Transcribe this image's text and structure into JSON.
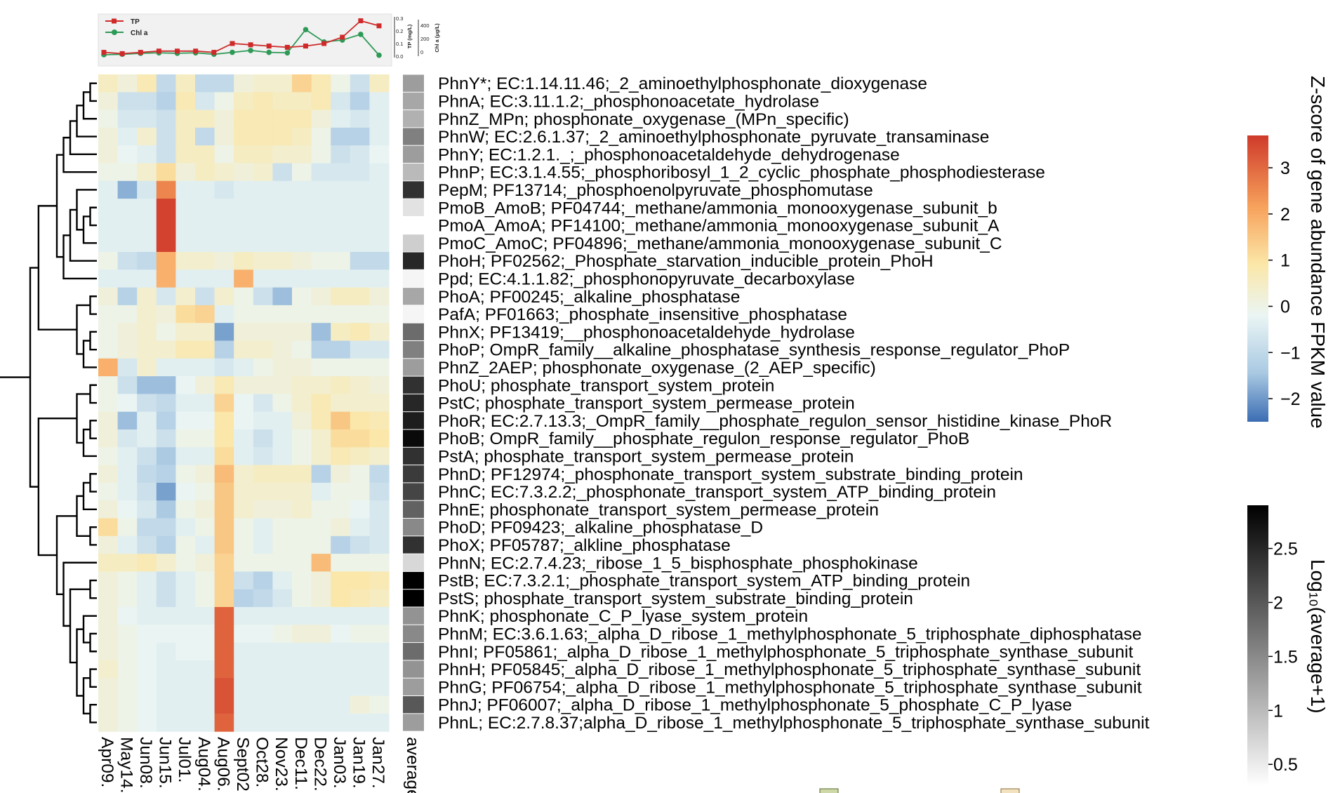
{
  "chart_data": {
    "type": "heatmap",
    "columns": [
      "Apr09.",
      "May14.",
      "Jun08.",
      "Jun15.",
      "Jul01.",
      "Aug04.",
      "Aug06.",
      "Sept02",
      "Oct28.",
      "Nov23.",
      "Dec11.",
      "Dec22.",
      "Jan03.",
      "Jan19.",
      "Jan27."
    ],
    "average_label": "average",
    "rows": [
      {
        "label": "PhnY*; EC:1.14.11.46;_2_aminoethylphosphonate_dioxygenase",
        "z": [
          0.8,
          0.4,
          1.0,
          -0.8,
          0.8,
          -0.8,
          -0.8,
          0.4,
          0.6,
          0.6,
          1.6,
          1.0,
          0.2,
          -0.6,
          0.8
        ],
        "avg": 1.3
      },
      {
        "label": "PhnA; EC:3.11.1.2;_phosphonoacetate_hydrolase",
        "z": [
          0.4,
          -0.6,
          -0.6,
          -1.0,
          1.0,
          -0.4,
          0.2,
          0.8,
          1.0,
          0.8,
          0.8,
          1.0,
          -0.4,
          -1.0,
          -0.2
        ],
        "avg": 1.2
      },
      {
        "label": "PhnZ_MPn; phosphonate_oxygenase_(MPn_specific)",
        "z": [
          0.2,
          -0.4,
          -0.4,
          -0.6,
          0.8,
          0.8,
          0.4,
          1.0,
          1.0,
          1.0,
          1.0,
          0.4,
          -0.2,
          -0.4,
          -0.2
        ],
        "avg": 1.1
      },
      {
        "label": "PhnW; EC:2.6.1.37;_2_aminoethylphosphonate_pyruvate_transaminase",
        "z": [
          0.4,
          -0.2,
          0.6,
          -0.6,
          0.8,
          -0.8,
          0.4,
          1.0,
          1.0,
          1.0,
          0.8,
          0.2,
          -1.0,
          -1.0,
          -0.2
        ],
        "avg": 1.6
      },
      {
        "label": "PhnY; EC:1.2.1._;_phosphonoacetaldehyde_dehydrogenase",
        "z": [
          0.4,
          0.0,
          -0.2,
          -0.6,
          0.8,
          0.8,
          0.2,
          0.8,
          0.8,
          0.6,
          0.6,
          0.2,
          -0.6,
          -0.4,
          0.0
        ],
        "avg": 1.3
      },
      {
        "label": "PhnP; EC:3.1.4.55;_phosphoribosyl_1_2_cyclic_phosphate_phosphodiesterase",
        "z": [
          0.2,
          0.2,
          0.6,
          1.4,
          0.4,
          0.8,
          0.6,
          0.4,
          0.6,
          -0.6,
          0.2,
          -0.4,
          -0.4,
          -0.4,
          -0.2
        ],
        "avg": 1.0
      },
      {
        "label": "PepM; PF13714;_phosphoenolpyruvate_phosphomutase",
        "z": [
          -0.2,
          -1.6,
          -0.4,
          2.8,
          -0.2,
          -0.2,
          -0.4,
          -0.2,
          -0.2,
          -0.2,
          -0.2,
          -0.2,
          -0.2,
          -0.2,
          -0.2
        ],
        "avg": 2.4
      },
      {
        "label": "PmoB_AmoB; PF04744;_methane/ammonia_monooxygenase_subunit_b",
        "z": [
          -0.2,
          -0.2,
          -0.2,
          3.6,
          -0.2,
          -0.2,
          -0.2,
          -0.2,
          -0.2,
          -0.2,
          -0.2,
          -0.2,
          -0.2,
          -0.2,
          -0.2
        ],
        "avg": 0.6
      },
      {
        "label": "PmoA_AmoA; PF14100;_methane/ammonia_monooxygenase_subunit_A",
        "z": [
          -0.2,
          -0.2,
          -0.2,
          3.6,
          -0.2,
          -0.2,
          -0.2,
          -0.2,
          -0.2,
          -0.2,
          -0.2,
          -0.2,
          -0.2,
          -0.2,
          -0.2
        ],
        "avg": 0.3
      },
      {
        "label": "PmoC_AmoC; PF04896;_methane/ammonia_monooxygenase_subunit_C",
        "z": [
          -0.2,
          -0.2,
          -0.2,
          3.6,
          -0.2,
          -0.2,
          -0.2,
          -0.2,
          -0.2,
          -0.2,
          -0.2,
          -0.2,
          -0.2,
          -0.2,
          -0.2
        ],
        "avg": 0.8
      },
      {
        "label": "PhoH; PF02562;_Phosphate_starvation_inducible_protein_PhoH",
        "z": [
          0.2,
          -0.6,
          -0.8,
          2.2,
          0.6,
          0.6,
          0.4,
          0.8,
          0.6,
          0.6,
          0.4,
          0.2,
          0.2,
          -0.8,
          -0.8
        ],
        "avg": 2.5
      },
      {
        "label": "Ppd; EC:4.1.1.82;_phosphonopyruvate_decarboxylase",
        "z": [
          -0.2,
          -0.2,
          -0.2,
          2.2,
          -0.2,
          -0.2,
          -0.2,
          2.2,
          -0.2,
          -0.2,
          -0.2,
          -0.2,
          -0.2,
          -0.2,
          -0.2
        ],
        "avg": 0.4
      },
      {
        "label": "PhoA; PF00245;_alkaline_phosphatase",
        "z": [
          0.4,
          -1.0,
          0.6,
          -0.4,
          0.6,
          -0.6,
          0.6,
          0.2,
          -0.6,
          -1.4,
          0.2,
          0.4,
          0.8,
          0.8,
          0.4
        ],
        "avg": 1.2
      },
      {
        "label": "PafA; PF01663;_phosphate_insensitive_phosphatase",
        "z": [
          0.2,
          0.2,
          0.6,
          0.4,
          1.4,
          1.6,
          -0.2,
          0.2,
          0.2,
          0.2,
          0.2,
          0.2,
          0.2,
          0.2,
          0.2
        ],
        "avg": 0.4
      },
      {
        "label": "PhnX; PF13419;__phosphonoacetaldehyde_hydrolase",
        "z": [
          0.2,
          0.4,
          0.6,
          0.2,
          0.6,
          0.6,
          -1.8,
          0.4,
          0.4,
          0.4,
          0.4,
          -1.4,
          0.8,
          1.0,
          0.6
        ],
        "avg": 1.8
      },
      {
        "label": "PhoP; OmpR_family__alkaline_phosphatase_synthesis_response_regulator_PhoP",
        "z": [
          0.2,
          0.4,
          0.6,
          0.6,
          1.0,
          1.0,
          -1.0,
          0.6,
          0.6,
          0.4,
          0.2,
          -1.0,
          -1.0,
          -0.4,
          -0.4
        ],
        "avg": 1.6
      },
      {
        "label": "PhnZ_2AEP; phosphonate_oxygenase_(2_AEP_specific)",
        "z": [
          2.2,
          -0.4,
          0.6,
          -0.2,
          -0.2,
          -0.2,
          -0.4,
          -0.2,
          0.2,
          0.4,
          0.4,
          0.2,
          0.2,
          0.2,
          0.2
        ],
        "avg": 1.3
      },
      {
        "label": "PhoU; phosphate_transport_system_protein",
        "z": [
          0.2,
          -0.6,
          -1.4,
          -1.4,
          0.0,
          0.4,
          1.0,
          0.4,
          0.4,
          0.4,
          0.6,
          0.6,
          0.8,
          0.6,
          0.4
        ],
        "avg": 2.4
      },
      {
        "label": "PstC; phosphate_transport_system_permease_protein",
        "z": [
          0.2,
          0.0,
          -0.6,
          -0.8,
          -0.2,
          -0.2,
          1.6,
          0.0,
          -0.4,
          0.2,
          0.6,
          1.0,
          0.6,
          0.6,
          0.6
        ],
        "avg": 2.5
      },
      {
        "label": "PhoR; EC:2.7.13.3;_OmpR_family__phosphate_regulon_sensor_histidine_kinase_PhoR",
        "z": [
          0.4,
          -1.4,
          -0.2,
          -1.0,
          0.0,
          0.0,
          1.2,
          0.0,
          -0.2,
          -0.2,
          0.4,
          1.0,
          1.8,
          1.2,
          1.0
        ],
        "avg": 2.6
      },
      {
        "label": "PhoB; OmpR_family__phosphate_regulon_response_regulator_PhoB",
        "z": [
          0.4,
          -0.4,
          -0.2,
          -0.6,
          0.2,
          0.2,
          1.2,
          -0.2,
          -0.6,
          -0.2,
          0.2,
          0.6,
          1.4,
          1.4,
          1.2
        ],
        "avg": 2.8
      },
      {
        "label": "PstA; phosphate_transport_system_permease_protein",
        "z": [
          0.2,
          -0.2,
          -0.6,
          -1.2,
          -0.2,
          -0.2,
          1.4,
          -0.2,
          -0.4,
          -0.2,
          0.2,
          0.6,
          1.0,
          0.8,
          0.6
        ],
        "avg": 2.4
      },
      {
        "label": "PhnD; PF12974;_phosphonate_transport_system_substrate_binding_protein",
        "z": [
          0.4,
          -0.2,
          -0.8,
          -1.0,
          0.2,
          0.4,
          2.0,
          0.6,
          0.8,
          0.8,
          0.8,
          -1.0,
          0.4,
          0.2,
          -0.8
        ],
        "avg": 2.3
      },
      {
        "label": "PhnC; EC:7.3.2.2;_phosphonate_transport_system_ATP_binding_protein",
        "z": [
          0.2,
          -0.2,
          -0.6,
          -1.8,
          0.0,
          0.2,
          1.8,
          0.6,
          0.6,
          0.6,
          0.6,
          -0.2,
          0.2,
          0.2,
          -0.6
        ],
        "avg": 2.2
      },
      {
        "label": "PhnE; phosphonate_transport_system_permease_protein",
        "z": [
          0.4,
          0.0,
          -0.4,
          -1.2,
          0.2,
          0.4,
          1.8,
          0.6,
          0.4,
          0.4,
          0.6,
          0.2,
          0.2,
          0.0,
          -0.4
        ],
        "avg": 1.9
      },
      {
        "label": "PhoD; PF09423;_alkaline_phosphatase_D",
        "z": [
          1.4,
          0.2,
          -0.8,
          -0.8,
          -0.2,
          0.2,
          1.8,
          0.2,
          -0.2,
          0.2,
          0.2,
          0.2,
          0.4,
          -0.2,
          -0.4
        ],
        "avg": 1.5
      },
      {
        "label": "PhoX; PF05787;_alkline_phosphatase",
        "z": [
          0.4,
          -0.2,
          -0.6,
          -1.0,
          0.2,
          -0.2,
          1.8,
          0.2,
          -0.2,
          0.2,
          0.2,
          0.2,
          -1.0,
          -0.6,
          -0.4
        ],
        "avg": 2.4
      },
      {
        "label": "PhnN; EC:2.7.4.23;_ribose_1_5_bisphosphate_phosphokinase",
        "z": [
          0.8,
          0.8,
          1.0,
          0.6,
          0.2,
          0.4,
          1.6,
          0.2,
          0.2,
          0.2,
          0.2,
          2.0,
          0.2,
          0.2,
          0.2
        ],
        "avg": 0.7
      },
      {
        "label": "PstB; EC:7.3.2.1;_phosphate_transport_system_ATP_binding_protein",
        "z": [
          0.4,
          0.2,
          -0.2,
          -0.6,
          -0.2,
          0.2,
          1.6,
          -0.6,
          -1.0,
          -0.2,
          0.2,
          0.4,
          1.2,
          1.2,
          1.0
        ],
        "avg": 2.9
      },
      {
        "label": "PstS; phosphate_transport_system_substrate_binding_protein",
        "z": [
          0.4,
          0.2,
          -0.2,
          -0.6,
          -0.2,
          0.2,
          1.6,
          -1.0,
          -0.8,
          -0.4,
          0.2,
          0.4,
          1.2,
          1.0,
          0.8
        ],
        "avg": 3.0
      },
      {
        "label": "PhnK; phosphonate_C_P_lyase_system_protein",
        "z": [
          0.4,
          0.0,
          -0.2,
          -0.2,
          -0.2,
          -0.2,
          3.2,
          -0.2,
          -0.2,
          -0.2,
          -0.2,
          -0.2,
          -0.2,
          -0.2,
          -0.2
        ],
        "avg": 1.4
      },
      {
        "label": "PhnM; EC:3.6.1.63;_alpha_D_ribose_1_methylphosphonate_5_triphosphate_diphosphatase",
        "z": [
          0.4,
          0.2,
          0.0,
          0.0,
          0.0,
          0.0,
          3.2,
          0.0,
          0.0,
          0.2,
          0.4,
          0.4,
          0.0,
          0.2,
          0.2
        ],
        "avg": 1.5
      },
      {
        "label": "PhnI; PF05861;_alpha_D_ribose_1_methylphosphonate_5_triphosphate_synthase_subunit",
        "z": [
          0.4,
          0.2,
          0.0,
          -0.2,
          0.0,
          0.0,
          3.2,
          -0.2,
          -0.2,
          -0.2,
          -0.2,
          -0.2,
          -0.2,
          -0.2,
          -0.2
        ],
        "avg": 1.8
      },
      {
        "label": "PhnH; PF05845;_alpha_D_ribose_1_methylphosphonate_5_triphosphate_synthase_subunit",
        "z": [
          0.6,
          0.2,
          0.0,
          -0.2,
          -0.2,
          -0.2,
          3.2,
          -0.2,
          -0.2,
          -0.2,
          -0.2,
          -0.2,
          -0.2,
          -0.2,
          -0.2
        ],
        "avg": 1.4
      },
      {
        "label": "PhnG; PF06754;_alpha_D_ribose_1_methylphosphonate_5_triphosphate_synthase_subunit",
        "z": [
          0.4,
          0.2,
          0.0,
          -0.2,
          -0.2,
          -0.2,
          3.4,
          -0.2,
          -0.2,
          -0.2,
          -0.2,
          -0.2,
          -0.2,
          -0.2,
          -0.2
        ],
        "avg": 1.3
      },
      {
        "label": "PhnJ; PF06007;_alpha_D_ribose_1_methylphosphonate_5_phosphate_C_P_lyase",
        "z": [
          0.4,
          0.2,
          0.0,
          -0.2,
          -0.2,
          -0.2,
          3.4,
          -0.2,
          -0.2,
          -0.2,
          -0.2,
          -0.2,
          -0.2,
          0.4,
          0.2
        ],
        "avg": 2.0
      },
      {
        "label": "PhnL; EC:2.7.8.37;alpha_D_ribose_1_methylphosphonate_5_triphosphate_synthase_subunit",
        "z": [
          0.4,
          0.2,
          0.0,
          -0.2,
          -0.2,
          -0.2,
          3.2,
          -0.2,
          -0.2,
          -0.2,
          -0.2,
          -0.2,
          -0.2,
          -0.2,
          -0.2
        ],
        "avg": 1.3
      }
    ],
    "zscore_colorbar": {
      "title": "Z-score of gene abundance FPKM value",
      "range": [
        -2.5,
        3.7
      ],
      "ticks": [
        "3",
        "2",
        "1",
        "0",
        "−1",
        "−2"
      ],
      "tick_values": [
        3,
        2,
        1,
        0,
        -1,
        -2
      ],
      "colors": [
        "#3b6db3",
        "#a9c9e2",
        "#eaf5f4",
        "#fbe7a8",
        "#f7a25c",
        "#cf3a2a"
      ]
    },
    "log_colorbar": {
      "title": "Log₁₀(average+1)",
      "range": [
        0.3,
        2.9
      ],
      "ticks": [
        "2.5",
        "2",
        "1.5",
        "1",
        "0.5"
      ],
      "tick_values": [
        2.5,
        2,
        1.5,
        1,
        0.5
      ],
      "colors": [
        "#ffffff",
        "#000000"
      ]
    },
    "inset": {
      "type": "line",
      "legend": [
        "TP",
        "Chl a"
      ],
      "colors": [
        "#cf2a2a",
        "#2e9a57"
      ],
      "tp": [
        0.03,
        0.02,
        0.03,
        0.04,
        0.04,
        0.04,
        0.03,
        0.1,
        0.09,
        0.08,
        0.07,
        0.08,
        0.1,
        0.15,
        0.28,
        0.24
      ],
      "chl": [
        15,
        20,
        30,
        35,
        30,
        35,
        20,
        40,
        60,
        40,
        35,
        280,
        150,
        170,
        230,
        10
      ],
      "tp_axis_label": "TP (mg/L)",
      "tp_ticks": [
        "0.3",
        "0.2",
        "0.1",
        "0.0"
      ],
      "chl_axis_label": "Chl a (μg/L)",
      "chl_ticks": [
        "400",
        "200",
        "0"
      ]
    }
  }
}
